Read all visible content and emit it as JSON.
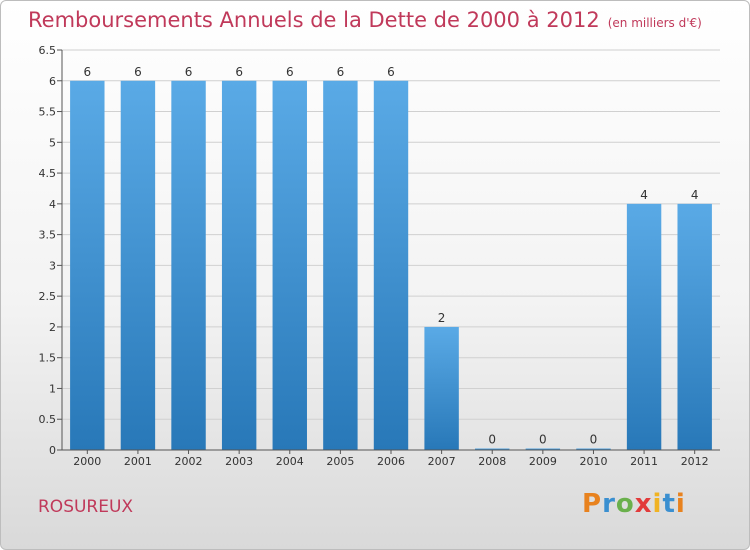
{
  "header": {
    "title": "Remboursements Annuels de la Dette de 2000 à 2012",
    "unit": "(en milliers d'€)"
  },
  "footer": {
    "commune": "ROSUREUX",
    "logo_letters": [
      "P",
      "r",
      "o",
      "x",
      "i",
      "t",
      "i"
    ],
    "logo_colors": [
      "#e8821e",
      "#3a8fd0",
      "#6ab04c",
      "#e23b3b",
      "#f0b323",
      "#3a8fd0",
      "#e8821e"
    ]
  },
  "chart_data": {
    "type": "bar",
    "title": "Remboursements Annuels de la Dette de 2000 à 2012",
    "subtitle": "(en milliers d'€)",
    "categories": [
      "2000",
      "2001",
      "2002",
      "2003",
      "2004",
      "2005",
      "2006",
      "2007",
      "2008",
      "2009",
      "2010",
      "2011",
      "2012"
    ],
    "values": [
      6,
      6,
      6,
      6,
      6,
      6,
      6,
      2,
      0,
      0,
      0,
      4,
      4
    ],
    "data_labels": [
      "6",
      "6",
      "6",
      "6",
      "6",
      "6",
      "6",
      "2",
      "0",
      "0",
      "0",
      "4",
      "4"
    ],
    "ylim": [
      0,
      6.5
    ],
    "yticks": [
      0,
      0.5,
      1,
      1.5,
      2,
      2.5,
      3,
      3.5,
      4,
      4.5,
      5,
      5.5,
      6,
      6.5
    ],
    "ytick_labels": [
      "0",
      "0.5",
      "1",
      "1.5",
      "2",
      "2.5",
      "3",
      "3.5",
      "4",
      "4.5",
      "5",
      "5.5",
      "6",
      "6.5"
    ],
    "grid": true,
    "bar_color_light": "#5aaae6",
    "bar_color_dark": "#2878b8",
    "grid_color": "#d0d0d0",
    "axis_color": "#555555"
  }
}
